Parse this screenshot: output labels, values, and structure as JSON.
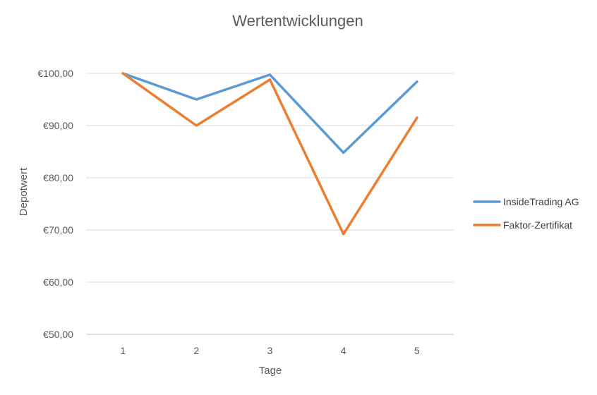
{
  "chart_data": {
    "type": "line",
    "title": "Wertentwicklungen",
    "xlabel": "Tage",
    "ylabel": "Depotwert",
    "categories": [
      "1",
      "2",
      "3",
      "4",
      "5"
    ],
    "ylim": [
      50,
      100
    ],
    "yticks": [
      50,
      60,
      70,
      80,
      90,
      100
    ],
    "ytick_labels": [
      "€50,00",
      "€60,00",
      "€70,00",
      "€80,00",
      "€90,00",
      "€100,00"
    ],
    "grid": true,
    "legend_position": "right",
    "series": [
      {
        "name": "InsideTrading AG",
        "color": "#5b9bd5",
        "values": [
          100.0,
          95.0,
          99.75,
          84.8,
          98.4
        ]
      },
      {
        "name": "Faktor-Zertifikat",
        "color": "#ed7d31",
        "values": [
          100.0,
          90.0,
          98.8,
          69.2,
          91.5
        ]
      }
    ]
  }
}
